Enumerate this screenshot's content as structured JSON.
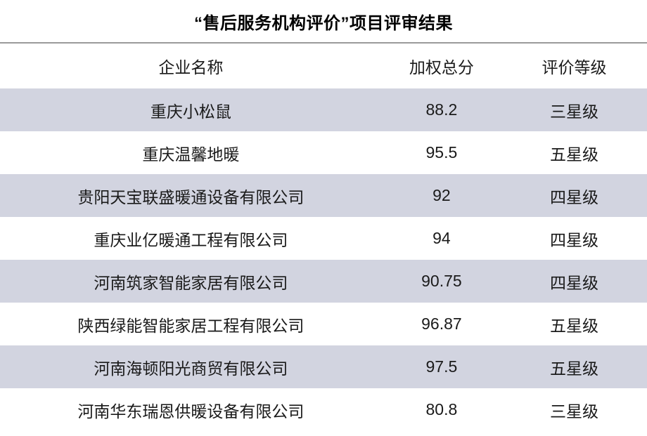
{
  "title": "“售后服务机构评价”项目评审结果",
  "table": {
    "headers": [
      "企业名称",
      "加权总分",
      "评价等级"
    ],
    "rows": [
      {
        "company": "重庆小松鼠",
        "score": "88.2",
        "grade": "三星级"
      },
      {
        "company": "重庆温馨地暖",
        "score": "95.5",
        "grade": "五星级"
      },
      {
        "company": "贵阳天宝联盛暖通设备有限公司",
        "score": "92",
        "grade": "四星级"
      },
      {
        "company": "重庆业亿暖通工程有限公司",
        "score": "94",
        "grade": "四星级"
      },
      {
        "company": "河南筑家智能家居有限公司",
        "score": "90.75",
        "grade": "四星级"
      },
      {
        "company": "陕西绿能智能家居工程有限公司",
        "score": "96.87",
        "grade": "五星级"
      },
      {
        "company": "河南海顿阳光商贸有限公司",
        "score": "97.5",
        "grade": "五星级"
      },
      {
        "company": "河南华东瑞恩供暖设备有限公司",
        "score": "80.8",
        "grade": "三星级"
      }
    ]
  },
  "chart_data": {
    "type": "table",
    "title": "“售后服务机构评价”项目评审结果",
    "columns": [
      "企业名称",
      "加权总分",
      "评价等级"
    ],
    "rows": [
      [
        "重庆小松鼠",
        88.2,
        "三星级"
      ],
      [
        "重庆温馨地暖",
        95.5,
        "五星级"
      ],
      [
        "贵阳天宝联盛暖通设备有限公司",
        92,
        "四星级"
      ],
      [
        "重庆业亿暖通工程有限公司",
        94,
        "四星级"
      ],
      [
        "河南筑家智能家居有限公司",
        90.75,
        "四星级"
      ],
      [
        "陕西绿能智能家居工程有限公司",
        96.87,
        "五星级"
      ],
      [
        "河南海顿阳光商贸有限公司",
        97.5,
        "五星级"
      ],
      [
        "河南华东瑞恩供暖设备有限公司",
        80.8,
        "三星级"
      ]
    ],
    "layout": {
      "stripe_pattern": "odd-rows-shaded",
      "header_divider": "top-rule-only",
      "alignment": "center"
    }
  },
  "colors": {
    "row_stripe": "#d2d4e0",
    "divider": "#9a9a9a",
    "text": "#1a1a1a",
    "background": "#ffffff"
  }
}
